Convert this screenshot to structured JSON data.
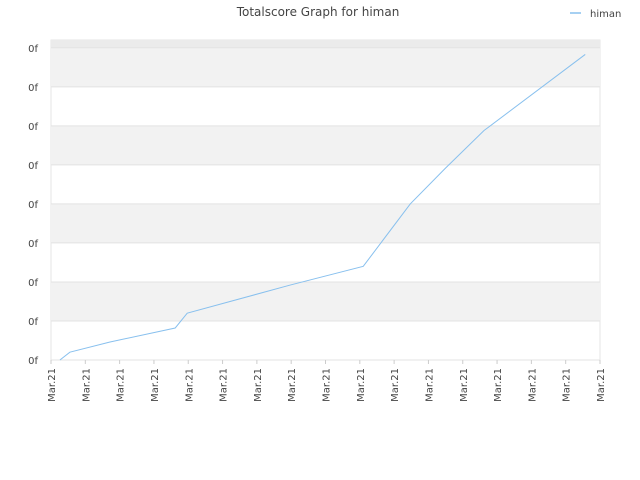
{
  "chart_data": {
    "type": "line",
    "title": "Totalscore Graph for himan",
    "x": [
      0.26,
      0.55,
      1.72,
      3.62,
      3.97,
      6.97,
      9.1,
      10.47,
      11.49,
      12.62,
      15.57
    ],
    "series": [
      {
        "name": "himan",
        "color": "#88c0ee",
        "values": [
          0,
          0.2,
          0.46,
          0.82,
          1.2,
          1.92,
          2.4,
          4.0,
          4.91,
          5.88,
          7.83
        ]
      }
    ],
    "xlim": [
      0,
      16
    ],
    "xticks": [
      {
        "value": 0,
        "label": "Mar.21"
      },
      {
        "value": 1,
        "label": "Mar.21"
      },
      {
        "value": 2,
        "label": "Mar.21"
      },
      {
        "value": 3,
        "label": "Mar.21"
      },
      {
        "value": 4,
        "label": "Mar.21"
      },
      {
        "value": 5,
        "label": "Mar.21"
      },
      {
        "value": 6,
        "label": "Mar.21"
      },
      {
        "value": 7,
        "label": "Mar.21"
      },
      {
        "value": 8,
        "label": "Mar.21"
      },
      {
        "value": 9,
        "label": "Mar.21"
      },
      {
        "value": 10,
        "label": "Mar.21"
      },
      {
        "value": 11,
        "label": "Mar.21"
      },
      {
        "value": 12,
        "label": "Mar.21"
      },
      {
        "value": 13,
        "label": "Mar.21"
      },
      {
        "value": 14,
        "label": "Mar.21"
      },
      {
        "value": 15,
        "label": "Mar.21"
      },
      {
        "value": 16,
        "label": "Mar.21"
      }
    ],
    "ylim": [
      0,
      8.2
    ],
    "yticks": [
      {
        "value": 0,
        "label": "0f"
      },
      {
        "value": 1,
        "label": "0f"
      },
      {
        "value": 2,
        "label": "0f"
      },
      {
        "value": 3,
        "label": "0f"
      },
      {
        "value": 4,
        "label": "0f"
      },
      {
        "value": 5,
        "label": "0f"
      },
      {
        "value": 6,
        "label": "0f"
      },
      {
        "value": 7,
        "label": "0f"
      },
      {
        "value": 8,
        "label": "0f"
      }
    ],
    "grid": true,
    "legend": "top-right"
  }
}
